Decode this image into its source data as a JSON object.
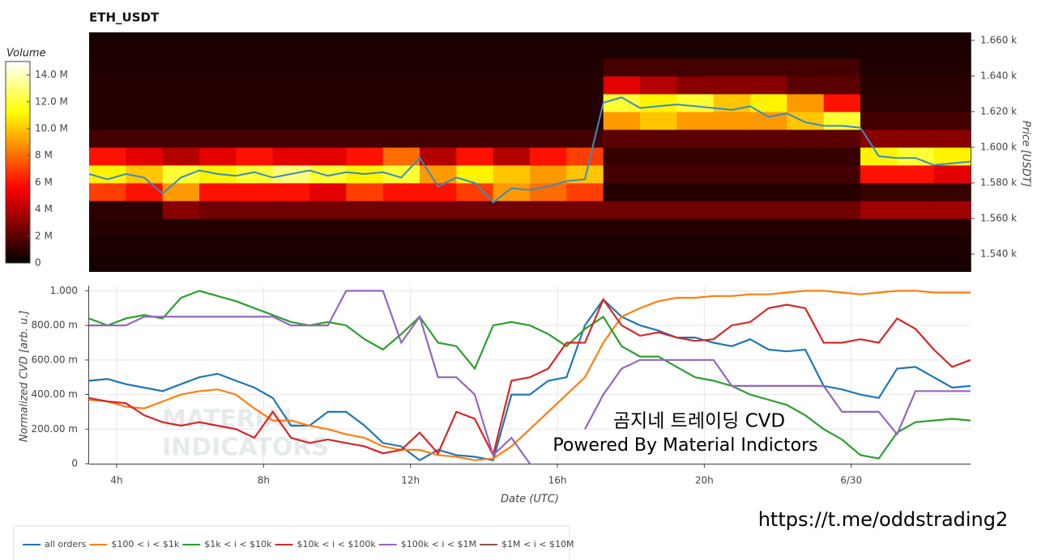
{
  "chart_data": [
    {
      "type": "heatmap",
      "title": "ETH_USDT",
      "y_label": "Price [USDT]",
      "x_bins": [
        3.25,
        4.25,
        5.25,
        6.25,
        7.25,
        8.25,
        9.25,
        10.25,
        11.25,
        12.25,
        13.25,
        14.25,
        15.25,
        16.25,
        17.25,
        18.25,
        19.25,
        20.25,
        21.25,
        22.25,
        23.25,
        24.25,
        25.25,
        26.25,
        27.25
      ],
      "y_bins": [
        1530,
        1540,
        1550,
        1560,
        1570,
        1580,
        1590,
        1600,
        1610,
        1620,
        1630,
        1640,
        1650,
        1660,
        1670
      ],
      "z": [
        [
          0.5,
          0.5,
          0.5,
          0.5,
          0.5,
          0.5,
          0.5,
          0.5,
          0.5,
          0.5,
          0.5,
          0.5,
          0.5,
          0.5,
          0.5,
          0.5,
          0.5,
          0.5,
          0.5,
          0.5,
          0.5,
          0.5,
          0.5,
          0.5
        ],
        [
          0.6,
          0.6,
          0.6,
          0.6,
          0.6,
          0.6,
          0.6,
          0.6,
          0.6,
          0.6,
          0.6,
          0.6,
          0.6,
          0.6,
          0.6,
          0.6,
          0.6,
          0.6,
          0.6,
          0.6,
          0.6,
          0.6,
          0.6,
          0.6
        ],
        [
          0.8,
          0.8,
          0.8,
          0.8,
          0.8,
          0.8,
          0.8,
          0.8,
          0.8,
          0.8,
          0.8,
          0.8,
          0.8,
          0.8,
          0.8,
          0.8,
          0.8,
          0.8,
          0.8,
          0.8,
          0.8,
          0.8,
          0.8,
          0.8
        ],
        [
          1,
          1,
          3,
          2.5,
          2.5,
          2.5,
          2.5,
          2.5,
          2.5,
          2.5,
          2.5,
          2.5,
          2.5,
          2.5,
          2.5,
          2.5,
          2.5,
          2.5,
          2.5,
          2.5,
          2.5,
          3.5,
          3.5,
          3.5
        ],
        [
          7,
          6,
          9,
          6,
          6,
          6,
          5,
          7,
          6,
          6,
          7,
          9,
          8,
          7,
          0.8,
          0.8,
          0.8,
          0.8,
          0.8,
          0.8,
          0.8,
          1.2,
          1.2,
          1.2
        ],
        [
          11,
          10,
          12,
          11,
          12,
          13,
          12,
          11,
          12,
          9,
          11,
          10,
          9,
          10,
          1.5,
          1.5,
          1.5,
          1.5,
          1.5,
          1.5,
          1.5,
          6,
          6,
          5
        ],
        [
          6,
          5,
          4,
          5,
          6,
          5,
          5,
          6,
          8,
          4,
          6,
          4,
          6,
          7,
          1.2,
          1.2,
          1.2,
          1.2,
          1.2,
          1.2,
          1.2,
          11,
          12,
          11
        ],
        [
          1.5,
          1.5,
          1.5,
          1.5,
          1.5,
          1.5,
          1.5,
          1.5,
          1.5,
          1.5,
          1.5,
          1.5,
          1.5,
          1.5,
          2,
          2,
          2,
          2,
          2,
          2,
          2,
          3,
          3,
          3
        ],
        [
          0.8,
          0.8,
          0.8,
          0.8,
          0.8,
          0.8,
          0.8,
          0.8,
          0.8,
          0.8,
          0.8,
          0.8,
          0.8,
          0.8,
          9,
          10,
          9,
          9,
          9,
          10,
          12,
          1.5,
          1.5,
          1.5
        ],
        [
          0.8,
          0.8,
          0.8,
          0.8,
          0.8,
          0.8,
          0.8,
          0.8,
          0.8,
          0.8,
          0.8,
          0.8,
          0.8,
          0.8,
          12,
          11,
          12,
          10,
          11,
          9,
          6,
          1,
          1,
          1
        ],
        [
          0.8,
          0.8,
          0.8,
          0.8,
          0.8,
          0.8,
          0.8,
          0.8,
          0.8,
          0.8,
          0.8,
          0.8,
          0.8,
          0.8,
          5,
          4,
          3,
          3,
          3,
          2,
          2,
          0.9,
          0.9,
          0.9
        ],
        [
          0.7,
          0.7,
          0.7,
          0.7,
          0.7,
          0.7,
          0.7,
          0.7,
          0.7,
          0.7,
          0.7,
          0.7,
          0.7,
          0.7,
          1.5,
          1.5,
          1.5,
          1.5,
          1.5,
          1.5,
          1.5,
          0.7,
          0.7,
          0.7
        ],
        [
          0.6,
          0.6,
          0.6,
          0.6,
          0.6,
          0.6,
          0.6,
          0.6,
          0.6,
          0.6,
          0.6,
          0.6,
          0.6,
          0.6,
          0.6,
          0.6,
          0.6,
          0.6,
          0.6,
          0.6,
          0.6,
          0.6,
          0.6,
          0.6
        ],
        [
          0.5,
          0.5,
          0.5,
          0.5,
          0.5,
          0.5,
          0.5,
          0.5,
          0.5,
          0.5,
          0.5,
          0.5,
          0.5,
          0.5,
          0.5,
          0.5,
          0.5,
          0.5,
          0.5,
          0.5,
          0.5,
          0.5,
          0.5,
          0.5
        ]
      ],
      "xlim": [
        3.25,
        27.25
      ],
      "ylim": [
        1530,
        1664.5
      ],
      "yticks": [
        {
          "value": 1540,
          "label": "1.540 k"
        },
        {
          "value": 1560,
          "label": "1.560 k"
        },
        {
          "value": 1580,
          "label": "1.580 k"
        },
        {
          "value": 1600,
          "label": "1.600 k"
        },
        {
          "value": 1620,
          "label": "1.620 k"
        },
        {
          "value": 1640,
          "label": "1.640 k"
        },
        {
          "value": 1660,
          "label": "1.660 k"
        }
      ],
      "colorbar": {
        "title": "Volume",
        "lim": [
          0,
          15
        ],
        "ticks": [
          0,
          {
            "value": 2,
            "label": "2 M"
          },
          {
            "value": 4,
            "label": "4 M"
          },
          {
            "value": 6,
            "label": "6 M"
          },
          {
            "value": 8,
            "label": "8 M"
          },
          {
            "value": 10,
            "label": "10.0 M"
          },
          {
            "value": 12,
            "label": "12.0 M"
          },
          {
            "value": 14,
            "label": "14.0 M"
          }
        ]
      },
      "series": [
        {
          "color": "#3a8ac4",
          "x": [
            3.25,
            3.75,
            4.25,
            4.75,
            5.25,
            5.75,
            6.25,
            6.75,
            7.25,
            7.75,
            8.25,
            8.75,
            9.25,
            9.75,
            10.25,
            10.75,
            11.25,
            11.75,
            12.25,
            12.75,
            13.25,
            13.75,
            14.25,
            14.75,
            15.25,
            15.75,
            16.25,
            16.75,
            17.25,
            17.75,
            18.25,
            18.75,
            19.25,
            19.75,
            20.25,
            20.75,
            21.25,
            21.75,
            22.25,
            22.75,
            23.25,
            23.75,
            24.25,
            24.75,
            25.25,
            25.75,
            26.25,
            26.75,
            27.25
          ],
          "values": [
            1585,
            1582,
            1585,
            1583,
            1574,
            1583,
            1587,
            1585,
            1584,
            1586,
            1583,
            1585,
            1587,
            1584,
            1586,
            1585,
            1586,
            1583,
            1594,
            1578,
            1583,
            1580,
            1569,
            1577,
            1576,
            1578,
            1581,
            1582,
            1625,
            1628,
            1622,
            1623,
            1624,
            1623,
            1622,
            1621,
            1623,
            1617,
            1619,
            1614,
            1612,
            1612,
            1611,
            1595,
            1594,
            1594,
            1590,
            1591,
            1592
          ]
        }
      ]
    },
    {
      "type": "line",
      "x_label": "Date (UTC)",
      "y_label": "Normalized CVD [arb. u.]",
      "x": [
        3.25,
        3.75,
        4.25,
        4.75,
        5.25,
        5.75,
        6.25,
        6.75,
        7.25,
        7.75,
        8.25,
        8.75,
        9.25,
        9.75,
        10.25,
        10.75,
        11.25,
        11.75,
        12.25,
        12.75,
        13.25,
        13.75,
        14.25,
        14.75,
        15.25,
        15.75,
        16.25,
        16.75,
        17.25,
        17.75,
        18.25,
        18.75,
        19.25,
        19.75,
        20.25,
        20.75,
        21.25,
        21.75,
        22.25,
        22.75,
        23.25,
        23.75,
        24.25,
        24.75,
        25.25,
        25.75,
        26.25,
        26.75,
        27.25
      ],
      "xlim": [
        3.25,
        27.25
      ],
      "xticks": [
        {
          "value": 4,
          "label": "4h"
        },
        {
          "value": 8,
          "label": "8h"
        },
        {
          "value": 12,
          "label": "12h"
        },
        {
          "value": 16,
          "label": "16h"
        },
        {
          "value": 20,
          "label": "20h"
        },
        {
          "value": 24,
          "label": "6/30"
        }
      ],
      "ylim": [
        0,
        1.03
      ],
      "yticks": [
        0,
        {
          "value": 0.2,
          "label": "200.00 m"
        },
        {
          "value": 0.4,
          "label": "400.00 m"
        },
        {
          "value": 0.6,
          "label": "600.00 m"
        },
        {
          "value": 0.8,
          "label": "800.00 m"
        },
        {
          "value": 1,
          "label": "1.000"
        }
      ],
      "grid": true,
      "series": [
        {
          "name": "all orders",
          "color": "#1f77b4",
          "values": [
            0.48,
            0.49,
            0.46,
            0.44,
            0.42,
            0.46,
            0.5,
            0.52,
            0.48,
            0.44,
            0.38,
            0.22,
            0.22,
            0.3,
            0.3,
            0.22,
            0.12,
            0.1,
            0.02,
            0.08,
            0.05,
            0.04,
            0.02,
            0.4,
            0.4,
            0.48,
            0.5,
            0.8,
            0.95,
            0.85,
            0.8,
            0.77,
            0.73,
            0.73,
            0.7,
            0.68,
            0.72,
            0.66,
            0.65,
            0.66,
            0.45,
            0.43,
            0.4,
            0.38,
            0.55,
            0.56,
            0.5,
            0.44,
            0.45
          ]
        },
        {
          "name": "$100 < i < $1k",
          "color": "#ff7f0e",
          "values": [
            0.37,
            0.36,
            0.33,
            0.32,
            0.36,
            0.4,
            0.42,
            0.43,
            0.4,
            0.32,
            0.25,
            0.25,
            0.22,
            0.2,
            0.17,
            0.15,
            0.1,
            0.08,
            0.08,
            0.05,
            0.04,
            0.02,
            0.03,
            0.1,
            0.2,
            0.3,
            0.4,
            0.5,
            0.7,
            0.85,
            0.9,
            0.94,
            0.96,
            0.96,
            0.97,
            0.97,
            0.98,
            0.98,
            0.99,
            1.0,
            1.0,
            0.99,
            0.98,
            0.99,
            1.0,
            1.0,
            0.99,
            0.99,
            0.99
          ]
        },
        {
          "name": "$1k < i < $10k",
          "color": "#2ca02c",
          "values": [
            0.84,
            0.8,
            0.84,
            0.86,
            0.84,
            0.96,
            1.0,
            0.97,
            0.94,
            0.9,
            0.86,
            0.82,
            0.8,
            0.82,
            0.8,
            0.72,
            0.66,
            0.75,
            0.85,
            0.7,
            0.68,
            0.55,
            0.8,
            0.82,
            0.8,
            0.75,
            0.68,
            0.78,
            0.85,
            0.68,
            0.62,
            0.62,
            0.56,
            0.5,
            0.48,
            0.45,
            0.4,
            0.37,
            0.34,
            0.28,
            0.2,
            0.14,
            0.05,
            0.03,
            0.18,
            0.24,
            0.25,
            0.26,
            0.25
          ]
        },
        {
          "name": "$10k < i < $100k",
          "color": "#d62728",
          "values": [
            0.38,
            0.36,
            0.35,
            0.28,
            0.24,
            0.22,
            0.24,
            0.22,
            0.2,
            0.15,
            0.3,
            0.15,
            0.12,
            0.14,
            0.12,
            0.1,
            0.06,
            0.08,
            0.18,
            0.06,
            0.3,
            0.26,
            0.05,
            0.48,
            0.5,
            0.55,
            0.7,
            0.7,
            0.95,
            0.8,
            0.74,
            0.76,
            0.73,
            0.71,
            0.72,
            0.8,
            0.82,
            0.9,
            0.92,
            0.9,
            0.7,
            0.7,
            0.72,
            0.7,
            0.84,
            0.78,
            0.66,
            0.56,
            0.6
          ]
        },
        {
          "name": "$100k < i < $1M",
          "color": "#9467bd",
          "values": [
            0.8,
            0.8,
            0.8,
            0.85,
            0.85,
            0.85,
            0.85,
            0.85,
            0.85,
            0.85,
            0.85,
            0.8,
            0.8,
            0.8,
            1.0,
            1.0,
            1.0,
            0.7,
            0.85,
            0.5,
            0.5,
            0.4,
            0.05,
            0.15,
            0,
            null,
            null,
            0.2,
            0.4,
            0.55,
            0.6,
            0.6,
            0.6,
            0.6,
            0.6,
            0.45,
            0.45,
            0.45,
            0.45,
            0.45,
            0.45,
            0.3,
            0.3,
            0.3,
            0.17,
            0.42,
            0.42,
            0.42,
            0.42
          ]
        },
        {
          "name": "$1M < i < $10M",
          "color": "#8c564b",
          "values": [
            null,
            null,
            null,
            null,
            null,
            null,
            null,
            null,
            null,
            null,
            null,
            null,
            null,
            null,
            null,
            null,
            null,
            null,
            null,
            null,
            null,
            null,
            null,
            null,
            null,
            null,
            null,
            null,
            null,
            null,
            null,
            null,
            null,
            null,
            null,
            null,
            null,
            null,
            null,
            null,
            null,
            null,
            null,
            null,
            null,
            null,
            null,
            null,
            null
          ]
        }
      ],
      "watermark": [
        "MATERIAL",
        "INDICATORS"
      ],
      "annotations": [
        "곰지네 트레이딩 CVD",
        "Powered By Material Indictors"
      ]
    }
  ],
  "footer_link": "https://t.me/oddstrading2"
}
